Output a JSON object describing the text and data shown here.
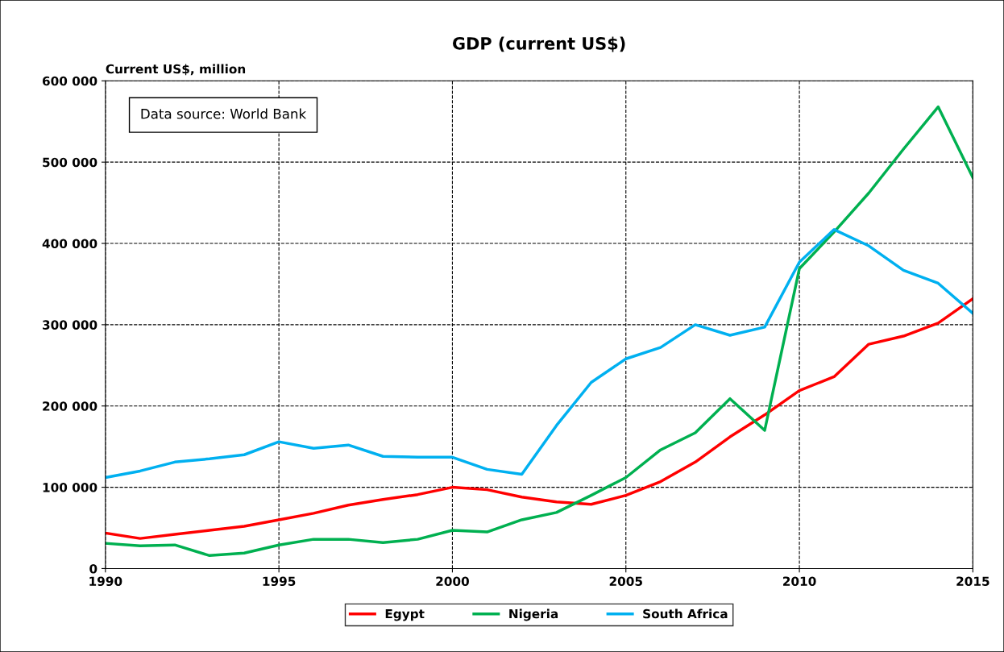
{
  "chart_data": {
    "type": "line",
    "title": "GDP (current US$)",
    "ylabel": "Current US$, million",
    "annotations": [
      "Data source: World Bank"
    ],
    "x": [
      1990,
      1991,
      1992,
      1993,
      1994,
      1995,
      1996,
      1997,
      1998,
      1999,
      2000,
      2001,
      2002,
      2003,
      2004,
      2005,
      2006,
      2007,
      2008,
      2009,
      2010,
      2011,
      2012,
      2013,
      2014,
      2015
    ],
    "series": [
      {
        "name": "Egypt",
        "color": "#ff0000",
        "values": [
          43700,
          37000,
          42000,
          47000,
          52000,
          60000,
          68000,
          78000,
          85000,
          91000,
          100000,
          97000,
          88000,
          82000,
          79000,
          90000,
          107000,
          131000,
          162000,
          189000,
          219000,
          236000,
          276000,
          286000,
          302000,
          332000
        ]
      },
      {
        "name": "Nigeria",
        "color": "#00b050",
        "values": [
          31000,
          28000,
          29000,
          16000,
          19000,
          29000,
          36000,
          36000,
          32000,
          36000,
          47000,
          45000,
          60000,
          69000,
          90000,
          112000,
          146000,
          167000,
          209000,
          170000,
          369000,
          414000,
          462000,
          516000,
          568000,
          481000
        ]
      },
      {
        "name": "South Africa",
        "color": "#00b0f0",
        "values": [
          112000,
          120000,
          131000,
          135000,
          140000,
          156000,
          148000,
          152000,
          138000,
          137000,
          137000,
          122000,
          116000,
          176000,
          229000,
          258000,
          272000,
          300000,
          287000,
          297000,
          377000,
          417000,
          397000,
          367000,
          351000,
          314000
        ]
      }
    ],
    "xlim": [
      1990,
      2015
    ],
    "xticks": [
      1990,
      1995,
      2000,
      2005,
      2010,
      2015
    ],
    "ylim": [
      0,
      600000
    ],
    "yticks": [
      0,
      {
        "value": 100000,
        "label": "100 000"
      },
      {
        "value": 200000,
        "label": "200 000"
      },
      {
        "value": 300000,
        "label": "300 000"
      },
      {
        "value": 400000,
        "label": "400 000"
      },
      {
        "value": 500000,
        "label": "500 000"
      },
      {
        "value": 600000,
        "label": "600 000"
      }
    ],
    "grid": true,
    "legend": "bottom",
    "line_style": "solid",
    "marker": "none"
  }
}
